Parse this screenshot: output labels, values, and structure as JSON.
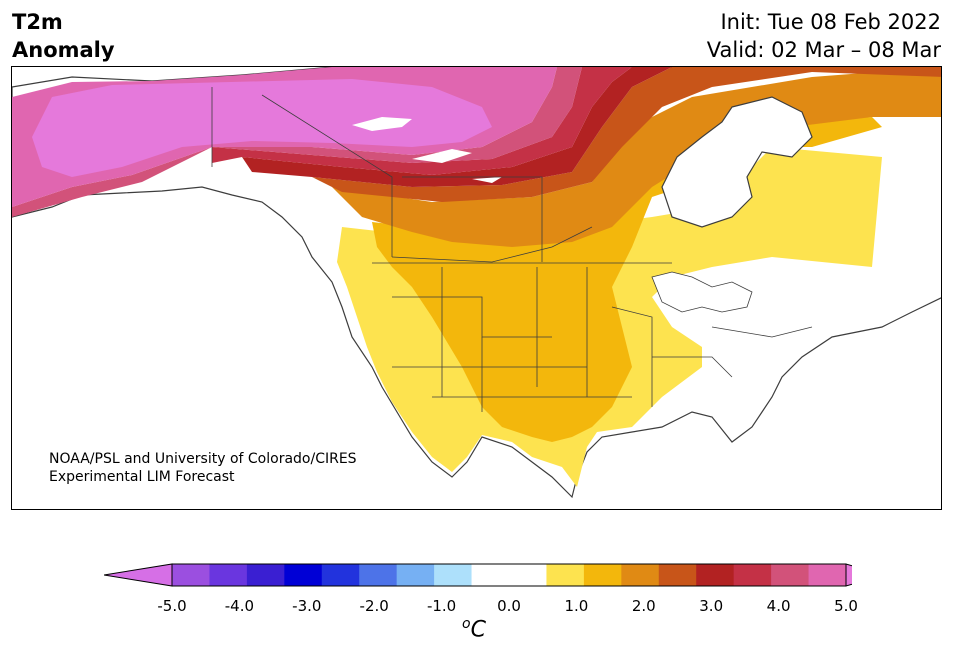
{
  "title": {
    "variable": "T2m",
    "variable2": "Anomaly"
  },
  "dates": {
    "init": "Init: Tue 08 Feb 2022",
    "valid": "Valid: 02 Mar – 08 Mar"
  },
  "credit": {
    "line1": "NOAA/PSL and University of Colorado/CIRES",
    "line2": "Experimental LIM Forecast"
  },
  "colorbar": {
    "ticks": [
      "-5.0",
      "-4.0",
      "-3.0",
      "-2.0",
      "-1.0",
      "0.0",
      "1.0",
      "2.0",
      "3.0",
      "4.0",
      "5.0"
    ],
    "unit_super": "o",
    "unit": "C",
    "colors": [
      "#d66fe6",
      "#9b4fe0",
      "#6a36df",
      "#3a1fd2",
      "#0000d6",
      "#2233dd",
      "#4d73e8",
      "#76b0f3",
      "#ade0fb",
      "#ffffff",
      "#ffffff",
      "#fde34f",
      "#f3b70c",
      "#e08a14",
      "#c85519",
      "#b22222",
      "#c43146",
      "#d2527a",
      "#e066b0",
      "#e579db"
    ]
  },
  "map": {
    "region": "North America",
    "colors": {
      "white": "#ffffff",
      "yellow": "#fde34f",
      "gold": "#f3b70c",
      "orange": "#e08a14",
      "dark_orange": "#c85519",
      "red": "#b22222",
      "crimson": "#c43146",
      "rose": "#d2527a",
      "pink": "#e066b0",
      "magenta": "#e579db",
      "border": "#3d3d3d"
    }
  }
}
